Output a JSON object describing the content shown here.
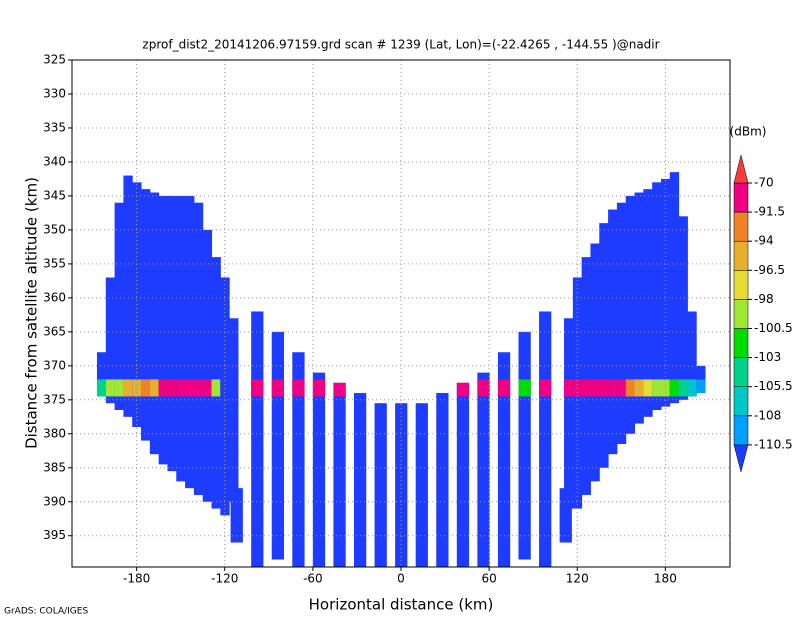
{
  "chart_data": {
    "type": "profile",
    "title": "zprof_dist2_20141206.97159.grd  scan # 1239  (Lat, Lon)=(-22.4265 , -144.55 )@nadir",
    "x_label": "Horizontal distance (km)",
    "y_label": "Distance from satellite altitude (km)",
    "footer": "GrADS: COLA/IGES",
    "xlim": [
      -224,
      224
    ],
    "xticks": [
      -180,
      -120,
      -60,
      0,
      60,
      120,
      180
    ],
    "ylim": [
      399.6,
      325
    ],
    "yticks": [
      325,
      330,
      335,
      340,
      345,
      350,
      355,
      360,
      365,
      370,
      375,
      380,
      385,
      390,
      395
    ],
    "grid": true,
    "field_dbm": -112,
    "surface_top": 372,
    "surface_bottom": 374.5,
    "swath": {
      "width": 6,
      "x": [
        -204,
        -198,
        -192,
        -186,
        -180,
        -174,
        -168,
        -162,
        -156,
        -150,
        -144,
        -138,
        -132,
        -126,
        -120,
        -114,
        114,
        120,
        126,
        132,
        138,
        144,
        150,
        156,
        162,
        168,
        174,
        180,
        186,
        192,
        198,
        204
      ],
      "top": [
        368,
        357,
        346,
        342,
        343,
        344,
        344.5,
        345,
        345,
        345,
        345,
        346,
        350,
        354,
        357,
        363,
        363,
        357,
        354,
        352,
        349,
        347,
        346,
        345,
        344.5,
        344,
        343,
        342.5,
        341.5,
        348,
        362,
        370
      ],
      "bottom": [
        374.5,
        375.5,
        376.5,
        377.5,
        379,
        381,
        383,
        384.5,
        385.5,
        387,
        388,
        389,
        390,
        391,
        392,
        390,
        391,
        391,
        389,
        387,
        385,
        383,
        381.5,
        380,
        378.5,
        377.5,
        376.5,
        376,
        375.5,
        375,
        374.5,
        374
      ],
      "surface_dbm": [
        -103,
        -100,
        -98,
        -95,
        -94,
        -92,
        -95,
        -90,
        -88,
        -88,
        -88,
        -88,
        -88,
        -98,
        -112,
        null,
        -88,
        -88,
        -86,
        -86,
        -86,
        -88,
        -88,
        -92,
        -96,
        -97,
        -99,
        -99,
        -102,
        -104,
        -106,
        -108
      ]
    },
    "beams": {
      "width": 8,
      "x": [
        -112,
        -98,
        -84,
        -70,
        -56,
        -42,
        -28,
        -14,
        0,
        14,
        28,
        42,
        56,
        70,
        84,
        98,
        112
      ],
      "top": [
        388,
        362,
        365,
        368,
        371,
        372.5,
        374,
        375.5,
        375.5,
        375.5,
        374,
        372.5,
        371,
        368,
        365,
        362,
        388
      ],
      "bottom": [
        396,
        399.6,
        398.5,
        399.6,
        399.6,
        399.6,
        399.6,
        399.6,
        399.6,
        399.6,
        399.6,
        399.6,
        399.6,
        399.6,
        398.5,
        399.6,
        396
      ],
      "surface_dbm": [
        null,
        -86,
        -86,
        -86,
        -86,
        -88,
        null,
        null,
        null,
        null,
        null,
        -88,
        -86,
        -86,
        -102,
        -86,
        null
      ]
    },
    "colorbar": {
      "unit": "(dBm)",
      "levels": [
        -110.5,
        -108,
        -105.5,
        -103,
        -100.5,
        -98,
        -96.5,
        -94,
        -91.5,
        -70
      ],
      "colors": [
        "#1e3cff",
        "#00a0ff",
        "#00c8c8",
        "#00d28c",
        "#00dc00",
        "#a0e632",
        "#e6dc32",
        "#e6af2d",
        "#f08228",
        "#f00082",
        "#fa3c3c"
      ]
    }
  }
}
